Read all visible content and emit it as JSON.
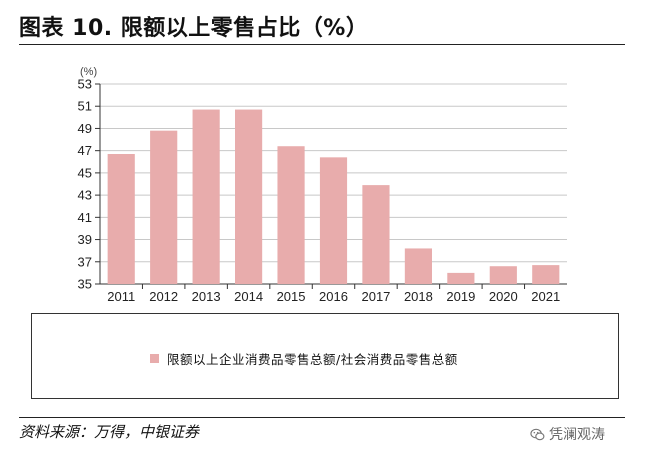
{
  "title": "图表 10. 限额以上零售占比（%）",
  "source": "资料来源：万得，中银证券",
  "watermark": "凭澜观涛",
  "watermark_icon": "wechat-icon",
  "colors": {
    "bar": "#e8acac",
    "grid": "#c8c8c8",
    "axis": "#333333"
  },
  "chart_data": {
    "type": "bar",
    "categories": [
      "2011",
      "2012",
      "2013",
      "2014",
      "2015",
      "2016",
      "2017",
      "2018",
      "2019",
      "2020",
      "2021"
    ],
    "series": [
      {
        "name": "限额以上企业消费品零售总额/社会消费品零售总额",
        "values": [
          46.7,
          48.8,
          50.7,
          50.7,
          47.4,
          46.4,
          43.9,
          38.2,
          36.0,
          36.6,
          36.7
        ]
      }
    ],
    "yunit": "(%)",
    "ylim": [
      35,
      53
    ],
    "yticks": [
      "35",
      "37",
      "39",
      "41",
      "43",
      "45",
      "47",
      "49",
      "51",
      "53"
    ],
    "grid": true,
    "legend": "bottom"
  }
}
